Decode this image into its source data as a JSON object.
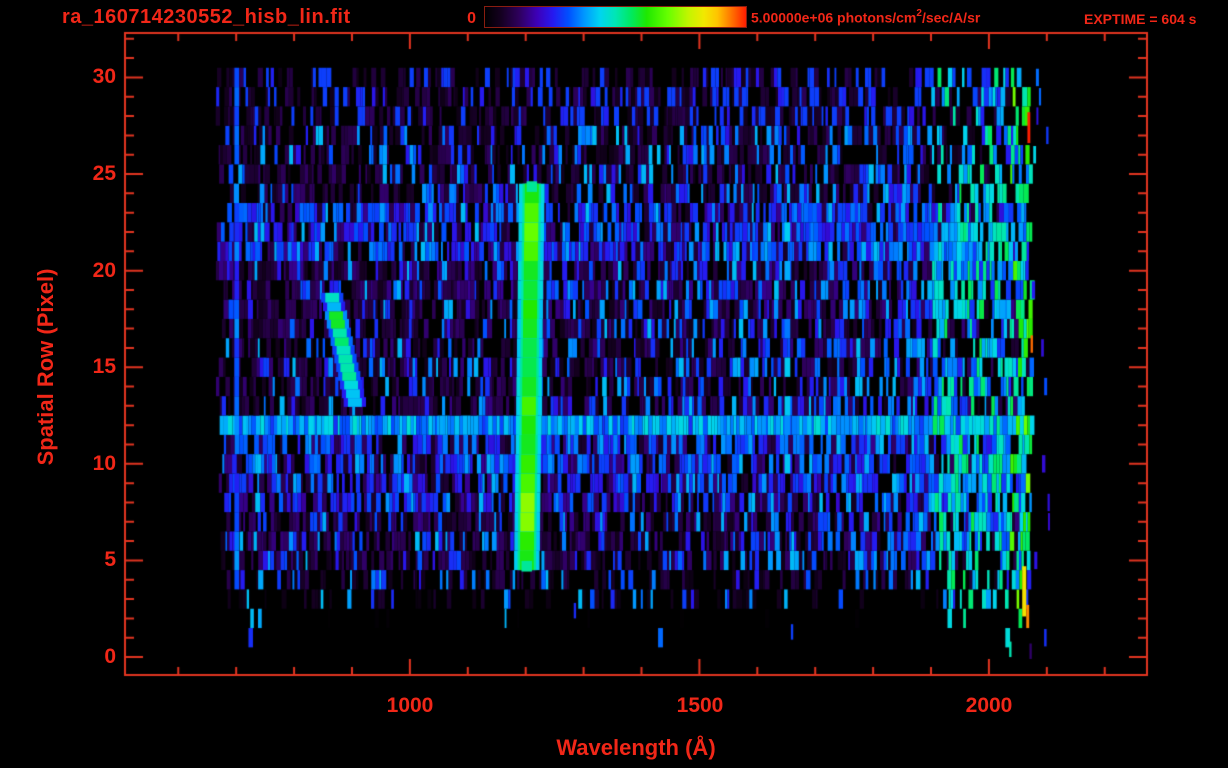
{
  "colors": {
    "text": "#f12718",
    "axis": "#e23420",
    "background": "#000000"
  },
  "header": {
    "filename": "ra_160714230552_hisb_lin.fit",
    "exptime_label": "EXPTIME = 604 s",
    "colorbar": {
      "min_label": "0",
      "max_label_prefix": "5.00000e+06 photons/cm",
      "max_label_sup": "2",
      "max_label_suffix": "/sec/A/sr"
    }
  },
  "chart_data": {
    "type": "heatmap",
    "title": "ra_160714230552_hisb_lin.fit",
    "xlabel": "Wavelength (Å)",
    "ylabel": "Spatial Row (Pixel)",
    "value_range": [
      0,
      5000000
    ],
    "value_units": "photons/cm2/sec/A/sr",
    "exposure_time_s": 604,
    "x_axis": {
      "range_A": [
        508,
        2273
      ],
      "major_ticks": [
        {
          "value": 1000,
          "label": "1000"
        },
        {
          "value": 1500,
          "label": "1500"
        },
        {
          "value": 2000,
          "label": "2000"
        }
      ],
      "minor_tick_interval_A": 100
    },
    "y_axis": {
      "range_rows": [
        -0.93,
        32.3
      ],
      "major_ticks": [
        {
          "value": 0,
          "label": "0"
        },
        {
          "value": 5,
          "label": "5"
        },
        {
          "value": 10,
          "label": "10"
        },
        {
          "value": 15,
          "label": "15"
        },
        {
          "value": 20,
          "label": "20"
        },
        {
          "value": 25,
          "label": "25"
        },
        {
          "value": 30,
          "label": "30"
        }
      ],
      "minor_tick_interval": 1
    },
    "data_extent": {
      "wavelength_A": [
        663,
        2071
      ],
      "rows": [
        0,
        30
      ]
    },
    "colormap_stops": [
      [
        0.0,
        "#000000"
      ],
      [
        0.06,
        "#14001f"
      ],
      [
        0.13,
        "#2e005c"
      ],
      [
        0.2,
        "#3d00b8"
      ],
      [
        0.26,
        "#2619f0"
      ],
      [
        0.32,
        "#0050ff"
      ],
      [
        0.38,
        "#0097ff"
      ],
      [
        0.44,
        "#00d4f0"
      ],
      [
        0.5,
        "#00e6b4"
      ],
      [
        0.56,
        "#00e960"
      ],
      [
        0.62,
        "#1fe800"
      ],
      [
        0.7,
        "#66ff00"
      ],
      [
        0.78,
        "#c3f500"
      ],
      [
        0.84,
        "#f2e800"
      ],
      [
        0.89,
        "#ffc400"
      ],
      [
        0.94,
        "#ff7a00"
      ],
      [
        1.0,
        "#ff1e00"
      ]
    ],
    "seed": 12,
    "noise": {
      "black_gap_fraction": 0.27,
      "dark_purple_intensity": [
        0.05,
        0.16
      ],
      "blue_intensity": [
        0.24,
        0.42
      ],
      "blue_fraction_by_wavelength": [
        [
          663,
          0.14
        ],
        [
          900,
          0.2
        ],
        [
          1300,
          0.28
        ],
        [
          1700,
          0.34
        ],
        [
          1900,
          0.55
        ],
        [
          2035,
          0.65
        ],
        [
          2071,
          0.65
        ]
      ],
      "dash_width_A": [
        3,
        9
      ],
      "left_edge_ragged_A": 25,
      "stray_right_max_A": 2100,
      "stray_right_chance": 0.45
    },
    "row_gain": [
      0,
      0.02,
      0.08,
      0.5,
      0.7,
      0.9,
      1.0,
      1.05,
      1.1,
      1.15,
      1.1,
      1.05,
      1.45,
      1.0,
      0.95,
      0.95,
      1.0,
      0.95,
      1.0,
      1.1,
      1.05,
      1.1,
      1.15,
      1.1,
      0.95,
      0.9,
      0.85,
      0.85,
      0.8,
      0.8,
      0.75
    ],
    "features": [
      {
        "name": "lyman_alpha_emission_line",
        "type": "vertical-line",
        "wavelength_A": 1206,
        "tilt_A_per_row": 0.45,
        "core_half_width_A": 12,
        "halo_half_width_A": 22,
        "rows": [
          5,
          24
        ],
        "halo_intensity": 0.44,
        "core_intensity_by_row": {
          "5": 0.6,
          "6": 0.64,
          "7": 0.72,
          "8": 0.74,
          "9": 0.66,
          "10": 0.64,
          "11": 0.6,
          "12": 0.62,
          "13": 0.66,
          "14": 0.6,
          "15": 0.57,
          "16": 0.58,
          "17": 0.6,
          "18": 0.62,
          "19": 0.58,
          "20": 0.6,
          "21": 0.66,
          "22": 0.7,
          "23": 0.68,
          "24": 0.62
        }
      },
      {
        "name": "bright_spatial_band",
        "type": "horizontal-band",
        "row": 12,
        "soft_rows": [
          8,
          9,
          10,
          11
        ],
        "intensity": [
          0.28,
          0.48
        ]
      },
      {
        "name": "diagonal_streak",
        "type": "streak",
        "row_start": 13.2,
        "row_end": 19.0,
        "wavelength_start_A": 905,
        "wavelength_end_A": 863,
        "half_width_A": 12,
        "intensity": [
          0.38,
          0.6
        ]
      },
      {
        "name": "faint_line_700A",
        "type": "vertical-line",
        "wavelength_A": 701,
        "core_half_width_A": 4,
        "rows": [
          4,
          30
        ],
        "intensity": [
          0.26,
          0.38
        ]
      },
      {
        "name": "faint_line_1650A",
        "type": "vertical-line",
        "wavelength_A": 1652,
        "core_half_width_A": 5,
        "rows": [
          10,
          23
        ],
        "intensity": [
          0.3,
          0.45
        ]
      },
      {
        "name": "long_wavelength_bright_zone",
        "type": "vertical-band",
        "wavelength_A": [
          1900,
          2071
        ],
        "green_zone_A": [
          2035,
          2071
        ],
        "intensity": [
          0.3,
          0.68
        ]
      }
    ],
    "hot_pixels": [
      {
        "row": 27.4,
        "wavelength_A": 2069,
        "width_A": 5,
        "height_rows": 1.6,
        "intensity": 1.0
      },
      {
        "row": 16.2,
        "wavelength_A": 2074,
        "width_A": 4,
        "height_rows": 0.9,
        "intensity": 0.95
      },
      {
        "row": 3.4,
        "wavelength_A": 2061,
        "width_A": 7,
        "height_rows": 2.6,
        "intensity": 0.85
      },
      {
        "row": 2.1,
        "wavelength_A": 2067,
        "width_A": 5,
        "height_rows": 1.2,
        "intensity": 0.93
      }
    ],
    "specks": [
      {
        "row": 0.4,
        "wavelength_A": 2037,
        "intensity": 0.5
      },
      {
        "row": 0.3,
        "wavelength_A": 2072,
        "intensity": 0.14
      },
      {
        "row": 2.4,
        "wavelength_A": 1285,
        "intensity": 0.28
      },
      {
        "row": 1.3,
        "wavelength_A": 1660,
        "intensity": 0.3
      }
    ]
  }
}
